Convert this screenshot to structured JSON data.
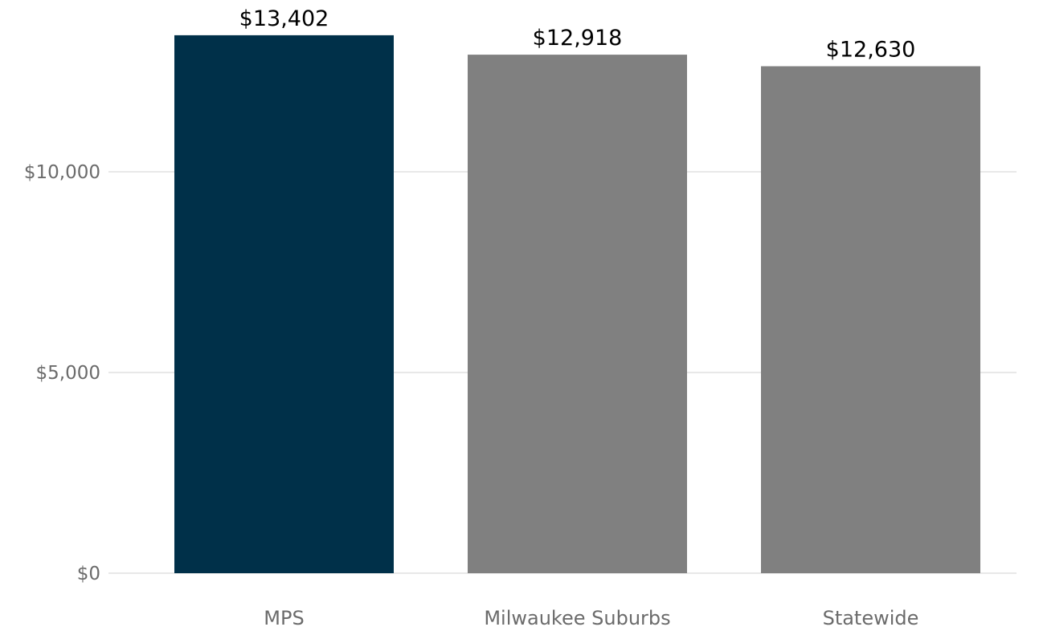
{
  "chart_data": {
    "type": "bar",
    "title": "",
    "xlabel": "",
    "ylabel": "",
    "categories": [
      "MPS",
      "Milwaukee Suburbs",
      "Statewide"
    ],
    "values": [
      13402,
      12918,
      12630
    ],
    "value_labels": [
      "$13,402",
      "$12,918",
      "$12,630"
    ],
    "bar_colors": [
      "#003049",
      "#808080",
      "#808080"
    ],
    "ylim": [
      0,
      13402
    ],
    "yticks": [
      0,
      5000,
      10000
    ],
    "ytick_labels": [
      "$0",
      "$5,000",
      "$10,000"
    ],
    "grid": true,
    "legend": "none"
  }
}
